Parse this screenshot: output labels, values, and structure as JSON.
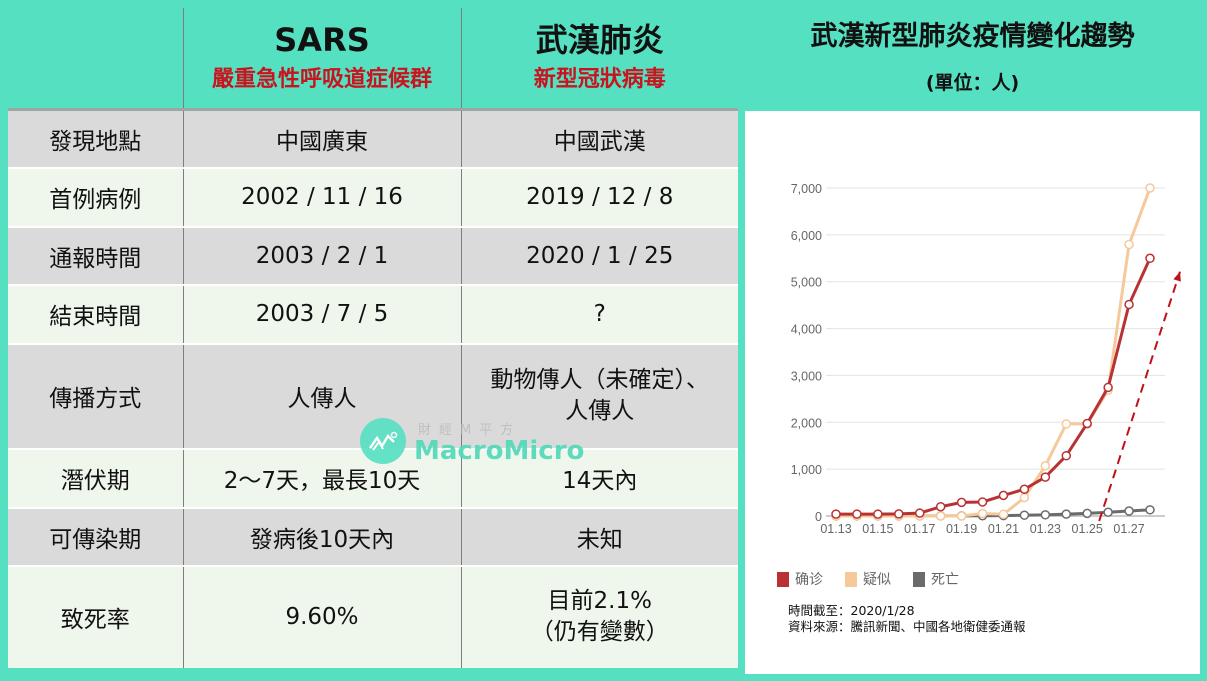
{
  "table": {
    "header": {
      "col0": "",
      "col1": {
        "title": "SARS",
        "subtitle": "嚴重急性呼吸道症候群"
      },
      "col2": {
        "title": "武漢肺炎",
        "subtitle": "新型冠狀病毒"
      }
    },
    "rows": [
      {
        "label": "發現地點",
        "sars": "中國廣東",
        "wuhan": "中國武漢"
      },
      {
        "label": "首例病例",
        "sars": "2002 / 11 / 16",
        "wuhan": "2019 / 12 / 8"
      },
      {
        "label": "通報時間",
        "sars": "2003 / 2 / 1",
        "wuhan": "2020 / 1 / 25"
      },
      {
        "label": "結束時間",
        "sars": "2003 / 7 / 5",
        "wuhan": "?"
      },
      {
        "label": "傳播方式",
        "sars": "人傳人",
        "wuhan_line1": "動物傳人（未確定）、",
        "wuhan_line2": "人傳人"
      },
      {
        "label": "潛伏期",
        "sars": "2～7天，最長10天",
        "wuhan": "14天內"
      },
      {
        "label": "可傳染期",
        "sars": "發病後10天內",
        "wuhan": "未知"
      },
      {
        "label": "致死率",
        "sars": "9.60%",
        "wuhan_line1": "目前2.1%",
        "wuhan_line2": "（仍有變數）"
      }
    ]
  },
  "watermark": {
    "line1": "財經M平方",
    "line2": "MacroMicro"
  },
  "chart_panel": {
    "title": "武漢新型肺炎疫情變化趨勢",
    "subtitle": "(單位：人)",
    "note_date": "時間截至：2020/1/28",
    "note_source": "資料來源：騰訊新聞、中國各地衛健委通報"
  },
  "chart_data": {
    "type": "line",
    "title": "武漢新型肺炎疫情變化趨勢",
    "subtitle": "(單位：人)",
    "xlabel": "",
    "ylabel": "",
    "x": [
      "01.13",
      "01.14",
      "01.15",
      "01.16",
      "01.17",
      "01.18",
      "01.19",
      "01.20",
      "01.21",
      "01.22",
      "01.23",
      "01.24",
      "01.25",
      "01.26",
      "01.27",
      "01.28"
    ],
    "x_tick_labels": [
      "01.13",
      "01.15",
      "01.17",
      "01.19",
      "01.21",
      "01.23",
      "01.25",
      "01.27"
    ],
    "y_ticks": [
      0,
      1000,
      2000,
      3000,
      4000,
      5000,
      6000,
      7000
    ],
    "y_tick_labels": [
      "0",
      "1,000",
      "2,000",
      "3,000",
      "4,000",
      "5,000",
      "6,000",
      "7,000"
    ],
    "ylim": [
      0,
      7000
    ],
    "grid": true,
    "legend_position": "bottom-left",
    "series": [
      {
        "name": "确诊",
        "color": "#b83234",
        "values": [
          41,
          41,
          41,
          45,
          62,
          198,
          291,
          300,
          440,
          571,
          830,
          1287,
          1975,
          2744,
          4515,
          5500
        ]
      },
      {
        "name": "疑似",
        "color": "#f5c99a",
        "values": [
          0,
          0,
          0,
          0,
          0,
          0,
          0,
          54,
          37,
          393,
          1072,
          1965,
          1965,
          2684,
          5794,
          7000
        ]
      },
      {
        "name": "死亡",
        "color": "#6b6b6b",
        "values": [
          1,
          1,
          1,
          1,
          2,
          3,
          3,
          6,
          9,
          17,
          25,
          41,
          56,
          80,
          106,
          132
        ]
      }
    ],
    "annotations": [
      {
        "type": "dashed-arrow",
        "color": "#c0101a",
        "from_x": "01.25",
        "to_x": "01.28",
        "meaning": "upward trend"
      }
    ]
  }
}
